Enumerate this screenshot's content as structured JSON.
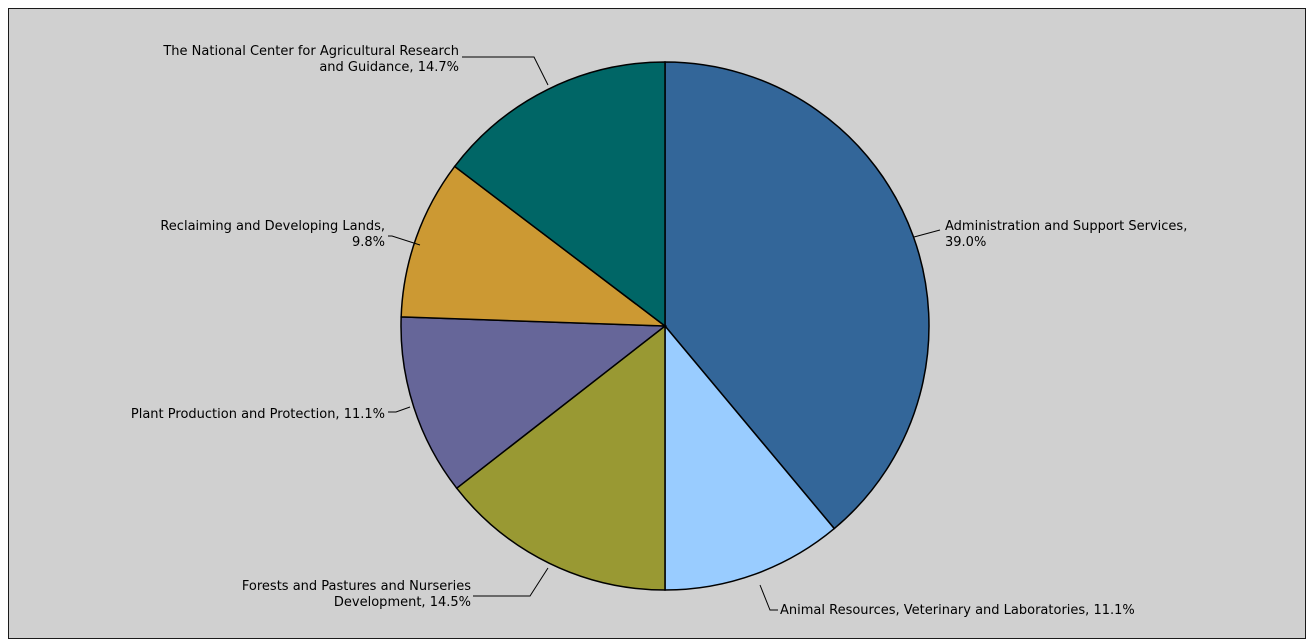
{
  "chart_data": {
    "type": "pie",
    "title": "",
    "start": "12 o'clock",
    "direction": "clockwise",
    "slices": [
      {
        "name": "Administration and Support Services",
        "value": 39.0,
        "color": "#336699",
        "label_lines": [
          "Administration and Support Services,",
          "39.0%"
        ]
      },
      {
        "name": "Animal Resources, Veterinary and Laboratories",
        "value": 11.1,
        "color": "#99ccff",
        "label_lines": [
          "Animal Resources, Veterinary and Laboratories, 11.1%"
        ]
      },
      {
        "name": "Forests and Pastures and Nurseries Development",
        "value": 14.5,
        "color": "#999933",
        "label_lines": [
          "Forests and Pastures and Nurseries",
          "Development, 14.5%"
        ]
      },
      {
        "name": "Plant Production and Protection",
        "value": 11.1,
        "color": "#666699",
        "label_lines": [
          "Plant Production and Protection, 11.1%"
        ]
      },
      {
        "name": "Reclaiming and Developing Lands",
        "value": 9.8,
        "color": "#cc9933",
        "label_lines": [
          "Reclaiming and Developing Lands,",
          "9.8%"
        ]
      },
      {
        "name": "The National Center for Agricultural Research and Guidance",
        "value": 14.7,
        "color": "#006666",
        "label_lines": [
          "The National Center for Agricultural Research",
          "and Guidance, 14.7%"
        ]
      }
    ]
  }
}
